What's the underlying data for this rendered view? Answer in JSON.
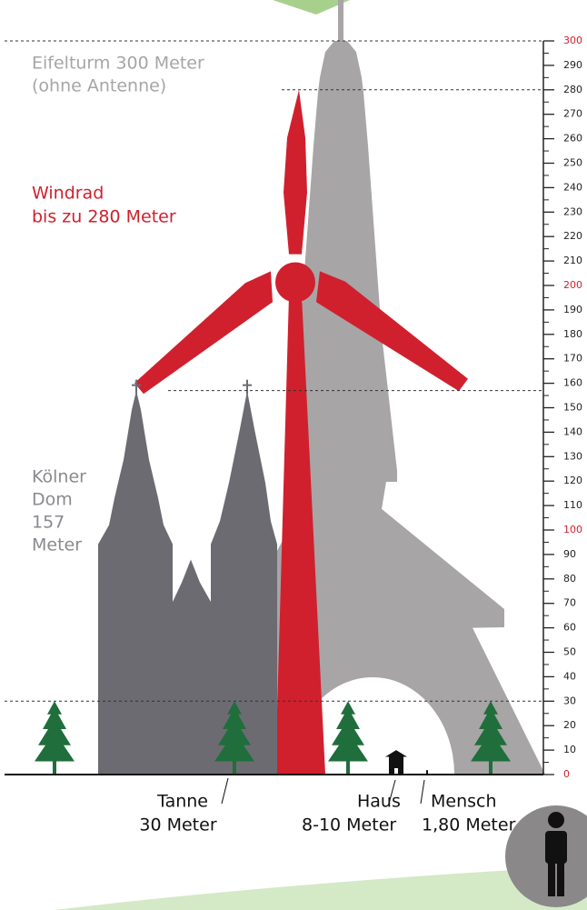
{
  "chart_data": {
    "type": "height-comparison",
    "ylim": [
      0,
      300
    ],
    "yticks": [
      0,
      10,
      20,
      30,
      40,
      50,
      60,
      70,
      80,
      90,
      100,
      110,
      120,
      130,
      140,
      150,
      160,
      170,
      180,
      190,
      200,
      210,
      220,
      230,
      240,
      250,
      260,
      270,
      280,
      290,
      300
    ],
    "tick_color": "#222222",
    "highlight_color": "#d0202e",
    "objects": [
      {
        "shape": "tower",
        "labels": [
          "Eifelturm 300 Meter",
          "(ohne Antenne)"
        ],
        "value": 300,
        "color": "#a7a5a6",
        "reference_line": true
      },
      {
        "shape": "turbine",
        "labels": [
          "Windrad",
          "bis zu 280 Meter"
        ],
        "value": 280,
        "color": "#d0202e",
        "reference_line": true
      },
      {
        "shape": "cathedral",
        "labels": [
          "Kölner",
          "Dom",
          "157",
          "Meter"
        ],
        "value": 157,
        "color": "#6d6b72",
        "reference_line": true
      },
      {
        "shape": "tree",
        "labels": [
          "Tanne",
          "30 Meter"
        ],
        "value": 30,
        "color": "#1f6e3c",
        "reference_line": true
      },
      {
        "shape": "house",
        "labels": [
          "Haus",
          "8-10 Meter"
        ],
        "values": [
          8,
          10
        ],
        "color": "#111111",
        "reference_line": false
      },
      {
        "shape": "person",
        "labels": [
          "Mensch",
          "1,80 Meter"
        ],
        "value": 1.8,
        "color": "#111111",
        "reference_line": false
      }
    ]
  }
}
